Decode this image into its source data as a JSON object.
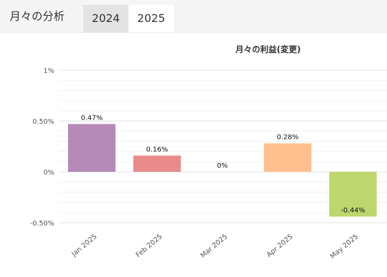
{
  "header": {
    "title": "月々の分析",
    "tabs": [
      {
        "label": "2024",
        "selected": false
      },
      {
        "label": "2025",
        "selected": true
      }
    ]
  },
  "chart_data": {
    "type": "bar",
    "title": "月々の利益(変更)",
    "categories": [
      "Jan 2025",
      "Feb 2025",
      "Mar 2025",
      "Apr 2025",
      "May 2025"
    ],
    "values": [
      0.47,
      0.16,
      0,
      0.28,
      -0.44
    ],
    "data_labels": [
      "0.47%",
      "0.16%",
      "0%",
      "0.28%",
      "-0.44%"
    ],
    "colors": [
      "#b589b8",
      "#e98b8a",
      "#8bc3e8",
      "#ffbf8f",
      "#bdd66d"
    ],
    "ylim": [
      -0.5,
      1
    ],
    "yticks": [
      -0.5,
      0,
      0.5,
      1
    ],
    "ytick_labels": [
      "-0.50%",
      "0%",
      "0.50%",
      "1%"
    ],
    "grid": true,
    "legend": "none"
  }
}
